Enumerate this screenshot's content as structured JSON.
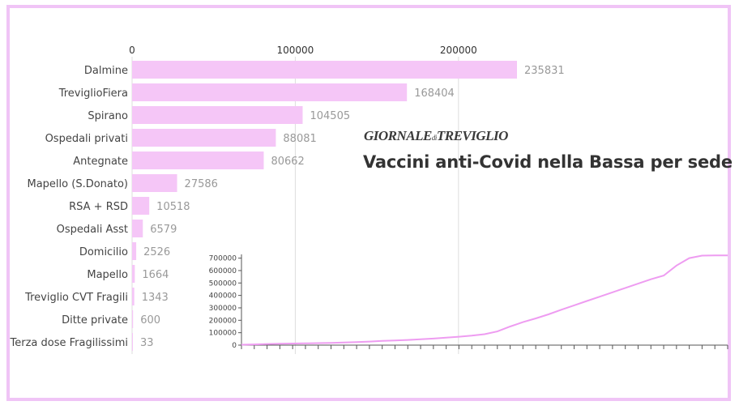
{
  "header": {
    "logo_main": "GIORNALE",
    "logo_small": "di",
    "logo_end": "TREVIGLIO",
    "title": "Vaccini anti-Covid nella Bassa per sede"
  },
  "colors": {
    "bar": "#f5c6f7",
    "line": "#ee9cf1",
    "frame": "#f0c4f6",
    "grid": "#dddddd"
  },
  "chart_data": [
    {
      "type": "bar",
      "orientation": "horizontal",
      "categories": [
        "Dalmine",
        "TreviglioFiera",
        "Spirano",
        "Ospedali privati",
        "Antegnate",
        "Mapello (S.Donato)",
        "RSA + RSD",
        "Ospedali Asst",
        "Domicilio",
        "Mapello",
        "Treviglio CVT Fragili",
        "Ditte private",
        "Terza dose Fragilissimi"
      ],
      "values": [
        235831,
        168404,
        104505,
        88081,
        80662,
        27586,
        10518,
        6579,
        2526,
        1664,
        1343,
        600,
        33
      ],
      "x_ticks": [
        0,
        100000,
        200000
      ],
      "xlim": [
        0,
        235831
      ],
      "grid": true
    },
    {
      "type": "line",
      "y_ticks": [
        0,
        100000,
        200000,
        300000,
        400000,
        500000,
        600000,
        700000
      ],
      "ylim": [
        0,
        730000
      ],
      "x_tick_count": 39,
      "values": [
        3000,
        6000,
        9000,
        11000,
        13000,
        14500,
        16000,
        18000,
        21000,
        25000,
        29000,
        34000,
        38000,
        42000,
        47000,
        53000,
        60000,
        68000,
        76000,
        88000,
        110000,
        150000,
        185000,
        215000,
        248000,
        285000,
        320000,
        355000,
        390000,
        425000,
        460000,
        495000,
        530000,
        560000,
        640000,
        700000,
        720000,
        722000,
        722000
      ],
      "grid": false
    }
  ]
}
